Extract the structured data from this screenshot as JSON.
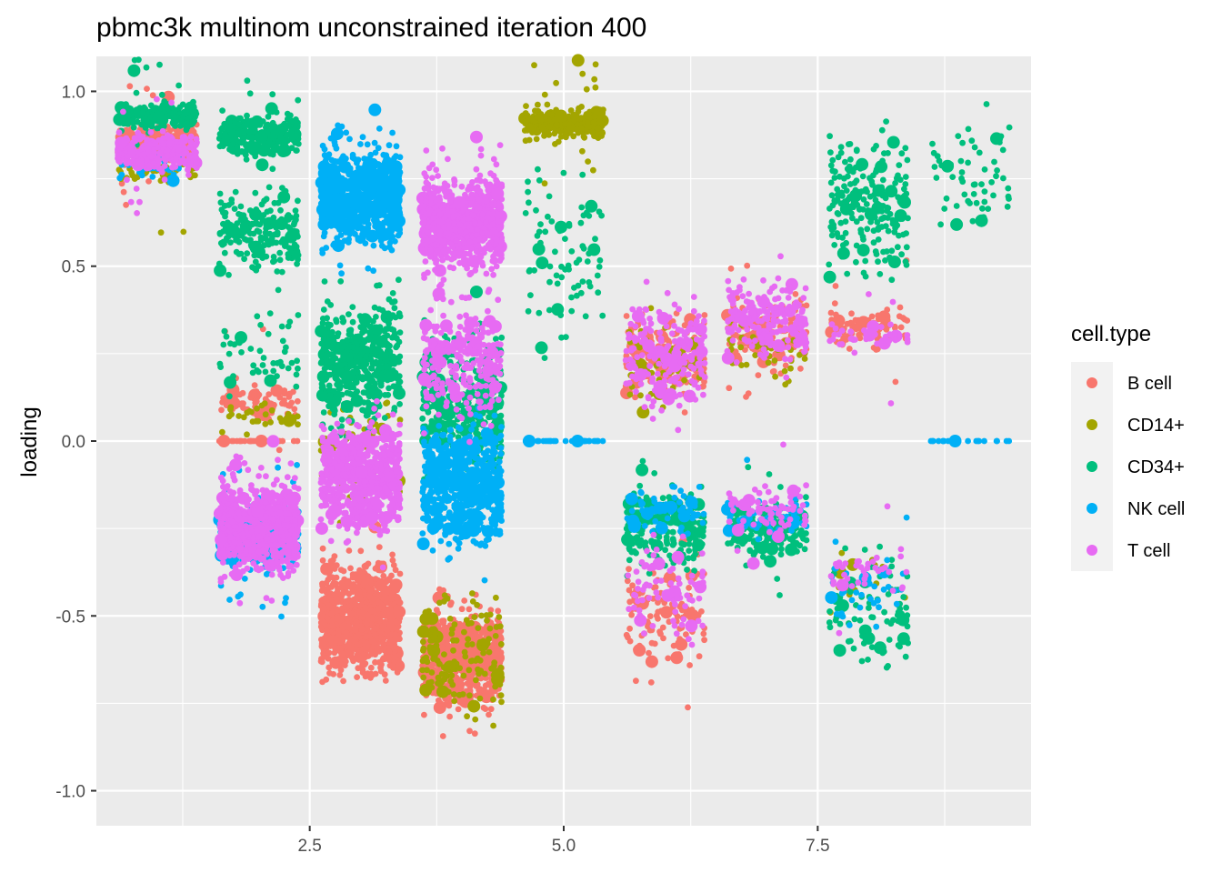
{
  "chart_data": {
    "type": "scatter",
    "title": "pbmc3k multinom unconstrained iteration 400",
    "xlabel": "",
    "ylabel": "loading",
    "xlim": [
      0.4,
      9.6
    ],
    "ylim": [
      -1.1,
      1.1
    ],
    "x_ticks": [
      2.5,
      5.0,
      7.5
    ],
    "x_tick_labels": [
      "2.5",
      "5.0",
      "7.5"
    ],
    "y_ticks": [
      -1.0,
      -0.5,
      0.0,
      0.5,
      1.0
    ],
    "y_tick_labels": [
      "-1.0",
      "-0.5",
      "0.0",
      "0.5",
      "1.0"
    ],
    "grid": true,
    "background": "#EBEBEB",
    "legend": {
      "title": "cell.type",
      "position": "right",
      "entries": [
        {
          "label": "B cell",
          "color": "#F8766D"
        },
        {
          "label": "CD14+",
          "color": "#A3A500"
        },
        {
          "label": "CD34+",
          "color": "#00BF7D"
        },
        {
          "label": "NK cell",
          "color": "#00B0F6"
        },
        {
          "label": "T cell",
          "color": "#E76BF3"
        }
      ]
    },
    "series": [
      {
        "name": "B cell",
        "color": "#F8766D",
        "clusters": [
          {
            "x": 1,
            "y": [
              0.78,
              0.92
            ],
            "n": 260
          },
          {
            "x": 2,
            "y": [
              0.05,
              0.18
            ],
            "n": 80
          },
          {
            "x": 2,
            "y": [
              0.0,
              0.0
            ],
            "n": 35
          },
          {
            "x": 3,
            "y": [
              -0.72,
              -0.3
            ],
            "n": 900
          },
          {
            "x": 4,
            "y": [
              -0.8,
              -0.45
            ],
            "n": 600
          },
          {
            "x": 6,
            "y": [
              0.1,
              0.4
            ],
            "n": 200
          },
          {
            "x": 6,
            "y": [
              -0.7,
              -0.3
            ],
            "n": 120
          },
          {
            "x": 7,
            "y": [
              0.15,
              0.45
            ],
            "n": 150
          },
          {
            "x": 8,
            "y": [
              0.25,
              0.4
            ],
            "n": 90
          }
        ]
      },
      {
        "name": "CD14+",
        "color": "#A3A500",
        "clusters": [
          {
            "x": 1,
            "y": [
              0.72,
              0.82
            ],
            "n": 40
          },
          {
            "x": 2,
            "y": [
              0.0,
              0.14
            ],
            "n": 30
          },
          {
            "x": 3,
            "y": [
              -0.25,
              0.2
            ],
            "n": 60
          },
          {
            "x": 4,
            "y": [
              -0.85,
              -0.35
            ],
            "n": 150
          },
          {
            "x": 5,
            "y": [
              0.85,
              0.97
            ],
            "n": 300
          },
          {
            "x": 6,
            "y": [
              0.05,
              0.35
            ],
            "n": 60
          },
          {
            "x": 7,
            "y": [
              0.15,
              0.35
            ],
            "n": 40
          },
          {
            "x": 8,
            "y": [
              -0.5,
              -0.3
            ],
            "n": 15
          }
        ]
      },
      {
        "name": "CD34+",
        "color": "#00BF7D",
        "clusters": [
          {
            "x": 1,
            "y": [
              0.88,
              0.98
            ],
            "n": 180
          },
          {
            "x": 2,
            "y": [
              0.8,
              0.95
            ],
            "n": 250
          },
          {
            "x": 2,
            "y": [
              0.45,
              0.75
            ],
            "n": 200
          },
          {
            "x": 2,
            "y": [
              0.1,
              0.4
            ],
            "n": 50
          },
          {
            "x": 3,
            "y": [
              0.0,
              0.45
            ],
            "n": 500
          },
          {
            "x": 4,
            "y": [
              -0.15,
              0.4
            ],
            "n": 400
          },
          {
            "x": 5,
            "y": [
              0.2,
              0.82
            ],
            "n": 80
          },
          {
            "x": 6,
            "y": [
              -0.4,
              -0.1
            ],
            "n": 220
          },
          {
            "x": 7,
            "y": [
              -0.35,
              -0.15
            ],
            "n": 180
          },
          {
            "x": 8,
            "y": [
              0.4,
              0.95
            ],
            "n": 220
          },
          {
            "x": 8,
            "y": [
              -0.7,
              -0.25
            ],
            "n": 90
          },
          {
            "x": 9,
            "y": [
              0.55,
              0.95
            ],
            "n": 60
          }
        ]
      },
      {
        "name": "NK cell",
        "color": "#00B0F6",
        "clusters": [
          {
            "x": 1,
            "y": [
              0.7,
              0.85
            ],
            "n": 25
          },
          {
            "x": 2,
            "y": [
              -0.4,
              -0.15
            ],
            "n": 350
          },
          {
            "x": 3,
            "y": [
              0.52,
              0.88
            ],
            "n": 850
          },
          {
            "x": 4,
            "y": [
              -0.35,
              0.1
            ],
            "n": 600
          },
          {
            "x": 5,
            "y": [
              0.0,
              0.0
            ],
            "n": 35
          },
          {
            "x": 6,
            "y": [
              -0.3,
              -0.1
            ],
            "n": 60
          },
          {
            "x": 7,
            "y": [
              -0.3,
              -0.15
            ],
            "n": 60
          },
          {
            "x": 8,
            "y": [
              -0.55,
              -0.3
            ],
            "n": 40
          },
          {
            "x": 9,
            "y": [
              0.0,
              0.0
            ],
            "n": 20
          }
        ]
      },
      {
        "name": "T cell",
        "color": "#E76BF3",
        "clusters": [
          {
            "x": 1,
            "y": [
              0.75,
              0.9
            ],
            "n": 280
          },
          {
            "x": 2,
            "y": [
              -0.42,
              -0.07
            ],
            "n": 650
          },
          {
            "x": 3,
            "y": [
              -0.3,
              0.1
            ],
            "n": 600
          },
          {
            "x": 4,
            "y": [
              0.45,
              0.8
            ],
            "n": 850
          },
          {
            "x": 4,
            "y": [
              0.0,
              0.45
            ],
            "n": 250
          },
          {
            "x": 6,
            "y": [
              0.05,
              0.45
            ],
            "n": 200
          },
          {
            "x": 6,
            "y": [
              -0.6,
              -0.25
            ],
            "n": 80
          },
          {
            "x": 7,
            "y": [
              0.2,
              0.5
            ],
            "n": 200
          },
          {
            "x": 7,
            "y": [
              -0.3,
              -0.1
            ],
            "n": 80
          },
          {
            "x": 8,
            "y": [
              0.25,
              0.35
            ],
            "n": 40
          },
          {
            "x": 8,
            "y": [
              -0.45,
              -0.3
            ],
            "n": 40
          }
        ]
      }
    ]
  }
}
